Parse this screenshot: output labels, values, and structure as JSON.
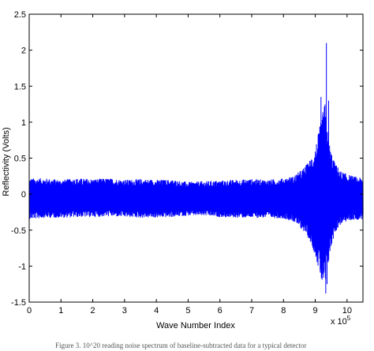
{
  "chart_data": {
    "type": "line",
    "title": "",
    "xlabel": "Wave Number Index",
    "ylabel": "Reflectivity (Volts)",
    "x_exponent_label": "x 10",
    "x_exponent_power": "5",
    "xlim": [
      0,
      10.5
    ],
    "ylim": [
      -1.5,
      2.5
    ],
    "x_ticks": [
      "0",
      "1",
      "2",
      "3",
      "4",
      "5",
      "6",
      "7",
      "8",
      "9",
      "10"
    ],
    "y_ticks": [
      "-1.5",
      "-1",
      "-0.5",
      "0",
      "0.5",
      "1",
      "1.5",
      "2",
      "2.5"
    ],
    "grid": false,
    "series": [
      {
        "color": "#0000ff",
        "envelope": {
          "x": [
            0,
            0.5,
            1,
            1.5,
            2,
            2.5,
            3,
            3.5,
            4,
            4.5,
            5,
            5.5,
            6,
            6.5,
            7,
            7.5,
            8,
            8.3,
            8.6,
            8.8,
            9.0,
            9.1,
            9.2,
            9.3,
            9.4,
            9.5,
            9.6,
            9.8,
            10.0,
            10.2,
            10.5
          ],
          "upper": [
            0.22,
            0.22,
            0.2,
            0.22,
            0.21,
            0.22,
            0.2,
            0.21,
            0.2,
            0.2,
            0.17,
            0.18,
            0.19,
            0.2,
            0.21,
            0.2,
            0.22,
            0.25,
            0.35,
            0.45,
            0.65,
            0.85,
            1.05,
            1.3,
            0.8,
            0.6,
            0.45,
            0.32,
            0.28,
            0.25,
            0.22
          ],
          "lower": [
            -0.35,
            -0.33,
            -0.33,
            -0.32,
            -0.32,
            -0.31,
            -0.32,
            -0.33,
            -0.33,
            -0.32,
            -0.3,
            -0.3,
            -0.32,
            -0.33,
            -0.33,
            -0.33,
            -0.34,
            -0.38,
            -0.5,
            -0.62,
            -0.85,
            -1.05,
            -1.25,
            -1.35,
            -1.0,
            -0.75,
            -0.55,
            -0.42,
            -0.38,
            -0.36,
            -0.35
          ]
        },
        "peaks": [
          {
            "x": 9.18,
            "y": 1.35
          },
          {
            "x": 9.3,
            "y": 1.0
          },
          {
            "x": 9.35,
            "y": 2.1
          },
          {
            "x": 9.37,
            "y": -1.25
          },
          {
            "x": 9.42,
            "y": 1.3
          },
          {
            "x": 9.33,
            "y": -1.38
          }
        ]
      }
    ]
  },
  "caption": "Figure 3. 10^20 reading noise spectrum of baseline-subtracted data for a typical detector"
}
